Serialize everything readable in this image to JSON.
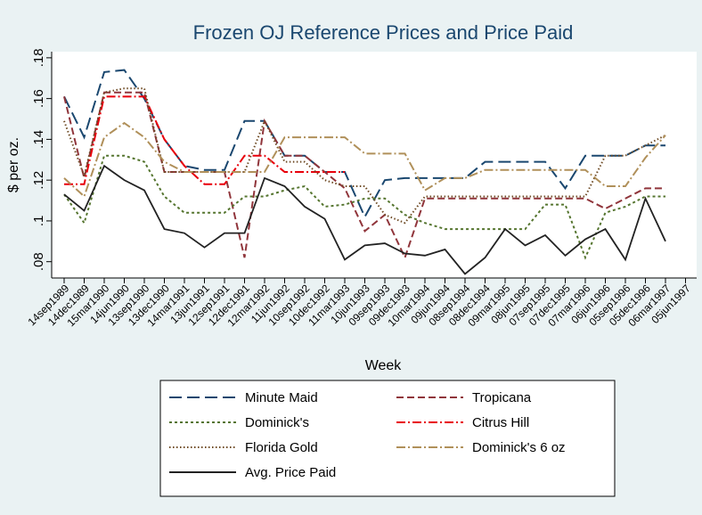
{
  "chart_data": {
    "type": "line",
    "title": "Frozen OJ Reference Prices and Price Paid",
    "x_label": "Week",
    "y_label": "$ per oz.",
    "categories": [
      "14sep1989",
      "14dec1989",
      "15mar1990",
      "14jun1990",
      "13sep1990",
      "13dec1990",
      "14mar1991",
      "13jun1991",
      "12sep1991",
      "12dec1991",
      "12mar1992",
      "11jun1992",
      "10sep1992",
      "10dec1992",
      "11mar1993",
      "10jun1993",
      "09sep1993",
      "09dec1993",
      "10mar1994",
      "09jun1994",
      "08sep1994",
      "08dec1994",
      "09mar1995",
      "08jun1995",
      "07sep1995",
      "07dec1995",
      "07mar1996",
      "06jun1996",
      "05sep1996",
      "05dec1996",
      "06mar1997",
      "05jun1997"
    ],
    "ylim": [
      0.072,
      0.183
    ],
    "yticks": [
      {
        "value": 0.08,
        "label": ".08"
      },
      {
        "value": 0.1,
        "label": ".1"
      },
      {
        "value": 0.12,
        "label": ".12"
      },
      {
        "value": 0.14,
        "label": ".14"
      },
      {
        "value": 0.16,
        "label": ".16"
      },
      {
        "value": 0.18,
        "label": ".18"
      }
    ],
    "grid": false,
    "series": [
      {
        "name": "Minute Maid",
        "color": "#1a476f",
        "dash": "14 6",
        "values": [
          0.161,
          0.141,
          0.173,
          0.174,
          0.16,
          0.14,
          0.127,
          0.125,
          0.125,
          0.149,
          0.149,
          0.132,
          0.132,
          0.124,
          0.124,
          0.102,
          0.12,
          0.121,
          0.121,
          0.121,
          0.121,
          0.129,
          0.129,
          0.129,
          0.129,
          0.116,
          0.132,
          0.132,
          0.132,
          0.137,
          0.137,
          null
        ]
      },
      {
        "name": "Tropicana",
        "color": "#90353b",
        "dash": "8 4",
        "values": [
          0.161,
          0.121,
          0.163,
          0.163,
          0.163,
          0.124,
          0.124,
          0.124,
          0.124,
          0.082,
          0.149,
          0.132,
          0.132,
          0.124,
          0.116,
          0.095,
          0.103,
          0.082,
          0.111,
          0.111,
          0.111,
          0.111,
          0.111,
          0.111,
          0.111,
          0.111,
          0.111,
          0.106,
          0.111,
          0.116,
          0.116,
          null
        ]
      },
      {
        "name": "Dominick's",
        "color": "#55752f",
        "dash": "3 3",
        "values": [
          0.113,
          0.099,
          0.132,
          0.132,
          0.129,
          0.112,
          0.104,
          0.104,
          0.104,
          0.112,
          0.112,
          0.115,
          0.117,
          0.107,
          0.108,
          0.111,
          0.111,
          0.103,
          0.099,
          0.096,
          0.096,
          0.096,
          0.096,
          0.096,
          0.108,
          0.108,
          0.082,
          0.104,
          0.107,
          0.112,
          0.112,
          null
        ]
      },
      {
        "name": "Citrus Hill",
        "color": "#e8000b",
        "dash": "10 3 2 3",
        "values": [
          0.118,
          0.118,
          0.161,
          0.161,
          0.161,
          0.14,
          0.127,
          0.118,
          0.118,
          0.132,
          0.132,
          0.124,
          0.124,
          0.124,
          0.124,
          null,
          null,
          null,
          null,
          null,
          null,
          null,
          null,
          null,
          null,
          null,
          null,
          null,
          null,
          null,
          null,
          null
        ]
      },
      {
        "name": "Florida Gold",
        "color": "#6e4a24",
        "dash": "1.5 2.5",
        "values": [
          0.149,
          0.122,
          0.163,
          0.165,
          0.165,
          0.124,
          0.124,
          0.124,
          0.124,
          0.124,
          0.149,
          0.129,
          0.129,
          0.12,
          0.117,
          0.117,
          0.103,
          0.099,
          0.112,
          0.112,
          0.112,
          0.112,
          0.112,
          0.112,
          0.112,
          0.112,
          0.112,
          0.132,
          0.132,
          0.137,
          0.142,
          null
        ]
      },
      {
        "name": "Dominick's 6 oz",
        "color": "#b0905a",
        "dash": "10 3 2 3",
        "values": [
          0.121,
          0.112,
          0.141,
          0.148,
          0.141,
          0.129,
          0.124,
          0.124,
          0.124,
          0.124,
          0.124,
          0.141,
          0.141,
          0.141,
          0.141,
          0.133,
          0.133,
          0.133,
          0.115,
          0.121,
          0.121,
          0.125,
          0.125,
          0.125,
          0.125,
          0.125,
          0.125,
          0.117,
          0.117,
          0.131,
          0.142,
          null
        ]
      },
      {
        "name": "Avg. Price Paid",
        "color": "#222222",
        "dash": "",
        "values": [
          0.113,
          0.105,
          0.127,
          0.12,
          0.115,
          0.096,
          0.094,
          0.087,
          0.094,
          0.094,
          0.121,
          0.117,
          0.107,
          0.101,
          0.081,
          0.088,
          0.089,
          0.084,
          0.083,
          0.086,
          0.074,
          0.082,
          0.096,
          0.088,
          0.093,
          0.083,
          0.091,
          0.096,
          0.081,
          0.111,
          0.09,
          null
        ]
      }
    ]
  }
}
